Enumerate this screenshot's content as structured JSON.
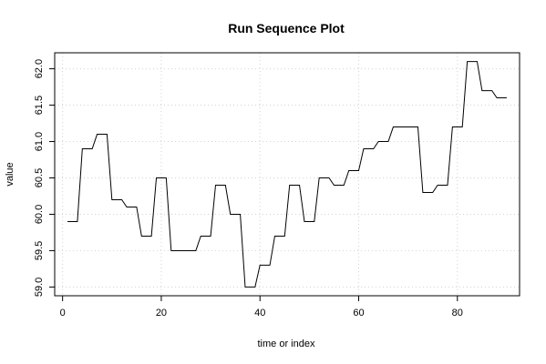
{
  "chart_data": {
    "type": "line",
    "title": "Run Sequence Plot",
    "xlabel": "time or index",
    "ylabel": "value",
    "xlim": [
      -1.6,
      92.6
    ],
    "ylim": [
      58.88,
      62.22
    ],
    "xticks": [
      0,
      20,
      40,
      60,
      80
    ],
    "xtick_labels": [
      "0",
      "20",
      "40",
      "60",
      "80"
    ],
    "yticks": [
      59.0,
      59.5,
      60.0,
      60.5,
      61.0,
      61.5,
      62.0
    ],
    "ytick_labels": [
      "59.0",
      "59.5",
      "60.0",
      "60.5",
      "61.0",
      "61.5",
      "62.0"
    ],
    "grid": true,
    "series": [
      {
        "x": [
          1,
          2,
          3,
          4,
          5,
          6,
          7,
          8,
          9,
          10,
          11,
          12,
          13,
          14,
          15,
          16,
          17,
          18,
          19,
          20,
          21,
          22,
          23,
          24,
          25,
          26,
          27,
          28,
          29,
          30,
          31,
          32,
          33,
          34,
          35,
          36,
          37,
          38,
          39,
          40,
          41,
          42,
          43,
          44,
          45,
          46,
          47,
          48,
          49,
          50,
          51,
          52,
          53,
          54,
          55,
          56,
          57,
          58,
          59,
          60,
          61,
          62,
          63,
          64,
          65,
          66,
          67,
          68,
          69,
          70,
          71,
          72,
          73,
          74,
          75,
          76,
          77,
          78,
          79,
          80,
          81,
          82,
          83,
          84,
          85,
          86,
          87,
          88,
          89,
          90
        ],
        "values": [
          59.9,
          59.9,
          59.9,
          60.9,
          60.9,
          60.9,
          61.1,
          61.1,
          61.1,
          60.2,
          60.2,
          60.2,
          60.1,
          60.1,
          60.1,
          59.7,
          59.7,
          59.7,
          60.5,
          60.5,
          60.5,
          59.5,
          59.5,
          59.5,
          59.5,
          59.5,
          59.5,
          59.7,
          59.7,
          59.7,
          60.4,
          60.4,
          60.4,
          60.0,
          60.0,
          60.0,
          59.0,
          59.0,
          59.0,
          59.3,
          59.3,
          59.3,
          59.7,
          59.7,
          59.7,
          60.4,
          60.4,
          60.4,
          59.9,
          59.9,
          59.9,
          60.5,
          60.5,
          60.5,
          60.4,
          60.4,
          60.4,
          60.6,
          60.6,
          60.6,
          60.9,
          60.9,
          60.9,
          61.0,
          61.0,
          61.0,
          61.2,
          61.2,
          61.2,
          61.2,
          61.2,
          61.2,
          60.3,
          60.3,
          60.3,
          60.4,
          60.4,
          60.4,
          61.2,
          61.2,
          61.2,
          62.1,
          62.1,
          62.1,
          61.7,
          61.7,
          61.7,
          61.6,
          61.6,
          61.6
        ],
        "color": "#000000"
      }
    ]
  }
}
